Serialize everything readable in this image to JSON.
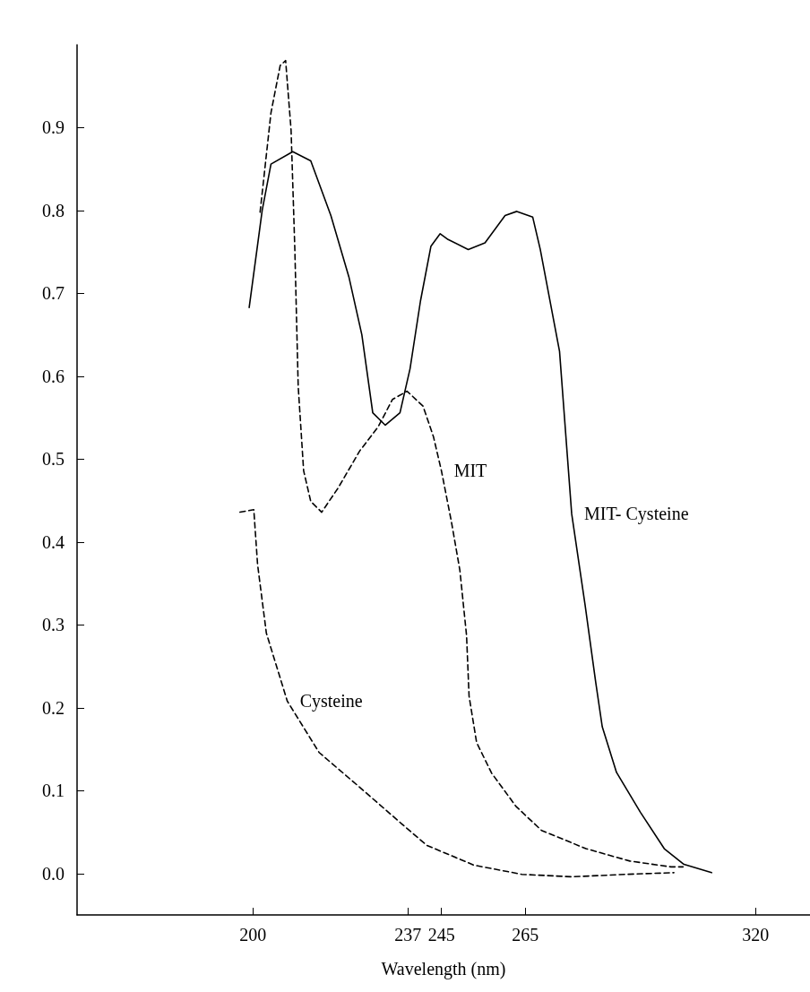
{
  "chart_data": {
    "type": "line",
    "xlabel": "Wavelength (nm)",
    "xlim": [
      158,
      333
    ],
    "xticks": [
      200,
      237,
      245,
      265,
      320
    ],
    "ylim": [
      -0.05,
      1.0
    ],
    "yticks": [
      {
        "value": 0,
        "label": "0.0"
      },
      0.1,
      0.2,
      0.3,
      0.4,
      0.5,
      0.6,
      0.7,
      0.8,
      0.9
    ],
    "grid": false,
    "legend": false,
    "marker": "none",
    "series": [
      {
        "name": "MIT- Cysteine",
        "color": "#000000",
        "line_style": "solid",
        "x": [
          199.1,
          202.2,
          204.3,
          209.5,
          213.8,
          218.6,
          222.9,
          226.0,
          228.6,
          231.6,
          235.1,
          237.5,
          240.0,
          242.5,
          244.7,
          246.6,
          251.4,
          255.4,
          260.2,
          263.0,
          266.8,
          268.6,
          273.2,
          276.1,
          279.3,
          281.8,
          283.4,
          286.8,
          292.5,
          298.2,
          302.9,
          309.5
        ],
        "values": [
          0.683,
          0.8,
          0.856,
          0.871,
          0.86,
          0.794,
          0.72,
          0.65,
          0.556,
          0.541,
          0.556,
          0.609,
          0.691,
          0.757,
          0.772,
          0.765,
          0.753,
          0.761,
          0.794,
          0.799,
          0.792,
          0.753,
          0.63,
          0.434,
          0.324,
          0.232,
          0.177,
          0.122,
          0.074,
          0.03,
          0.011,
          0.001
        ]
      },
      {
        "name": "MIT",
        "color": "#000000",
        "line_style": "dashed",
        "x": [
          201.7,
          204.3,
          206.5,
          207.8,
          209.1,
          210.0,
          210.8,
          212.1,
          213.8,
          216.4,
          220.3,
          225.5,
          229.9,
          233.3,
          236.8,
          240.6,
          243.1,
          245.0,
          247.4,
          249.4,
          251.0,
          251.6,
          253.4,
          257.0,
          262.8,
          268.9,
          279.5,
          290.0,
          299.8,
          302.7
        ],
        "values": [
          0.798,
          0.918,
          0.975,
          0.981,
          0.897,
          0.753,
          0.588,
          0.486,
          0.449,
          0.436,
          0.465,
          0.51,
          0.539,
          0.572,
          0.582,
          0.564,
          0.527,
          0.486,
          0.424,
          0.366,
          0.287,
          0.214,
          0.158,
          0.121,
          0.081,
          0.052,
          0.03,
          0.015,
          0.008,
          0.008
        ]
      },
      {
        "name": "Cysteine",
        "color": "#000000",
        "line_style": "dashed",
        "x": [
          196.9,
          200.2,
          201.1,
          203.2,
          208.2,
          215.8,
          225.5,
          235.5,
          241.5,
          252.8,
          264.2,
          276.1,
          289.1,
          300.5
        ],
        "values": [
          0.436,
          0.439,
          0.373,
          0.29,
          0.208,
          0.146,
          0.104,
          0.06,
          0.034,
          0.01,
          -0.001,
          -0.004,
          -0.001,
          0.001
        ]
      }
    ]
  }
}
